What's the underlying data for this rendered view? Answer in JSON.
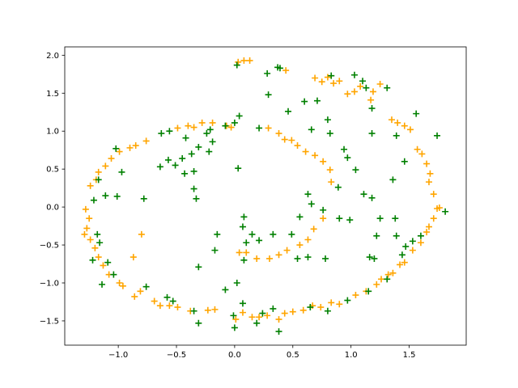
{
  "chart_data": {
    "type": "scatter",
    "xlim": [
      -1.46,
      1.99
    ],
    "ylim": [
      -1.82,
      2.11
    ],
    "xticks": [
      {
        "value": -1.0,
        "label": "−1.0"
      },
      {
        "value": -0.5,
        "label": "−0.5"
      },
      {
        "value": 0.0,
        "label": "0.0"
      },
      {
        "value": 0.5,
        "label": "0.5"
      },
      {
        "value": 1.0,
        "label": "1.0"
      },
      {
        "value": 1.5,
        "label": "1.5"
      }
    ],
    "yticks": [
      {
        "value": -1.5,
        "label": "−1.5"
      },
      {
        "value": -1.0,
        "label": "−1.0"
      },
      {
        "value": -0.5,
        "label": "−0.5"
      },
      {
        "value": 0.0,
        "label": "0.0"
      },
      {
        "value": 0.5,
        "label": "0.5"
      },
      {
        "value": 1.0,
        "label": "1.0"
      },
      {
        "value": 1.5,
        "label": "1.5"
      },
      {
        "value": 2.0,
        "label": "2.0"
      }
    ],
    "marker": "+",
    "series": [
      {
        "color": "#ffa500",
        "x": [
          0.03,
          0.08,
          0.13,
          0.44,
          0.69,
          0.75,
          0.8,
          0.85,
          0.9,
          0.97,
          1.03,
          1.08,
          1.17,
          1.19,
          1.25,
          -1.28,
          -1.25,
          -1.27,
          -1.29,
          -1.24,
          -1.2,
          -1.17,
          -1.13,
          -1.08,
          -0.99,
          -0.96,
          -0.86,
          -0.81,
          -0.69,
          -0.64,
          -0.56,
          -0.49,
          -0.38,
          -0.23,
          -0.17,
          0.01,
          0.07,
          0.15,
          0.21,
          0.28,
          0.38,
          0.43,
          0.5,
          0.59,
          0.67,
          0.74,
          0.83,
          0.9,
          1.04,
          1.13,
          1.22,
          1.26,
          1.32,
          1.36,
          1.42,
          1.46,
          1.53,
          1.6,
          1.65,
          1.67,
          1.71,
          1.74,
          1.76,
          1.71,
          1.67,
          1.68,
          1.65,
          1.61,
          1.57,
          1.51,
          1.46,
          1.4,
          1.35,
          -1.24,
          -1.19,
          -1.17,
          -1.11,
          -1.06,
          -0.99,
          -0.9,
          -0.85,
          -0.76,
          -0.49,
          -0.4,
          -0.35,
          -0.28,
          -0.19,
          -0.07,
          -0.03,
          0.29,
          0.38,
          0.43,
          0.49,
          0.54,
          0.61,
          0.69,
          0.76,
          0.82,
          0.83,
          0.76,
          0.68,
          0.63,
          0.56,
          0.45,
          0.38,
          0.3,
          0.19,
          0.1,
          0.04,
          -0.8,
          -0.87
        ],
        "y": [
          1.91,
          1.93,
          1.93,
          1.8,
          1.7,
          1.65,
          1.71,
          1.63,
          1.66,
          1.49,
          1.52,
          1.59,
          1.41,
          1.52,
          1.62,
          -0.03,
          -0.15,
          -0.28,
          -0.36,
          -0.43,
          -0.54,
          -0.66,
          -0.77,
          -0.89,
          -1.0,
          -1.04,
          -1.18,
          -1.11,
          -1.24,
          -1.3,
          -1.3,
          -1.32,
          -1.37,
          -1.36,
          -1.35,
          -1.48,
          -1.39,
          -1.45,
          -1.45,
          -1.43,
          -1.48,
          -1.4,
          -1.38,
          -1.36,
          -1.3,
          -1.32,
          -1.26,
          -1.28,
          -1.16,
          -1.11,
          -1.02,
          -0.95,
          -0.89,
          -0.87,
          -0.76,
          -0.73,
          -0.57,
          -0.47,
          -0.33,
          -0.26,
          -0.15,
          -0.02,
          -0.01,
          0.17,
          0.33,
          0.44,
          0.57,
          0.7,
          0.76,
          1.02,
          1.07,
          1.11,
          1.15,
          0.28,
          0.36,
          0.46,
          0.54,
          0.64,
          0.73,
          0.78,
          0.81,
          0.87,
          1.04,
          1.07,
          1.05,
          1.11,
          1.11,
          1.07,
          1.05,
          1.04,
          0.97,
          0.89,
          0.88,
          0.81,
          0.73,
          0.68,
          0.6,
          0.49,
          0.33,
          -0.15,
          -0.29,
          -0.43,
          -0.5,
          -0.57,
          -0.63,
          -0.68,
          -0.68,
          -0.6,
          -0.6,
          -0.36,
          -0.66
        ]
      },
      {
        "color": "#008000",
        "x": [
          0.02,
          0.37,
          0.39,
          0.28,
          0.6,
          0.71,
          0.83,
          1.03,
          1.1,
          1.13,
          1.31,
          1.18,
          0.46,
          0.8,
          0.29,
          0.04,
          0.0,
          -0.08,
          -0.21,
          -0.24,
          -0.31,
          -0.37,
          -0.45,
          -0.57,
          -0.64,
          -0.51,
          -0.43,
          -0.35,
          -0.22,
          -0.19,
          -0.42,
          -0.56,
          -0.63,
          0.03,
          -1.02,
          -0.97,
          -1.01,
          -1.11,
          -1.21,
          -1.17,
          -0.78,
          -0.35,
          -0.33,
          0.21,
          0.66,
          0.82,
          0.94,
          0.97,
          1.04,
          1.18,
          1.39,
          1.46,
          1.56,
          1.74,
          1.36,
          1.18,
          1.11,
          0.89,
          0.76,
          0.9,
          0.99,
          1.25,
          1.38,
          1.6,
          1.47,
          1.39,
          1.22,
          1.16,
          1.2,
          0.78,
          0.63,
          0.54,
          0.66,
          0.63,
          0.56,
          0.49,
          0.33,
          0.21,
          0.15,
          0.07,
          0.08,
          0.1,
          0.08,
          -0.15,
          -0.17,
          -0.31,
          -0.08,
          0.02,
          0.07,
          -0.01,
          0.0,
          0.19,
          0.24,
          0.33,
          -0.35,
          -0.31,
          -0.53,
          -0.58,
          -0.76,
          -1.04,
          -1.09,
          -1.22,
          -1.14,
          -1.16,
          -1.18,
          1.81,
          1.53,
          1.44,
          1.31,
          1.15,
          0.97,
          0.8,
          0.65,
          0.38
        ],
        "y": [
          1.87,
          1.84,
          1.83,
          1.76,
          1.39,
          1.4,
          1.73,
          1.74,
          1.66,
          1.57,
          1.57,
          1.3,
          1.26,
          1.15,
          1.48,
          1.2,
          1.11,
          1.07,
          1.02,
          0.97,
          0.79,
          0.7,
          0.64,
          0.62,
          0.53,
          0.55,
          0.44,
          0.47,
          0.73,
          0.86,
          0.91,
          1.0,
          0.97,
          0.51,
          0.77,
          0.46,
          0.14,
          0.15,
          0.09,
          0.36,
          0.11,
          0.24,
          0.11,
          1.04,
          1.02,
          0.97,
          0.76,
          0.65,
          0.49,
          0.97,
          0.94,
          0.6,
          1.23,
          0.94,
          0.36,
          0.12,
          0.17,
          0.26,
          -0.04,
          -0.15,
          -0.17,
          -0.15,
          -0.15,
          -0.38,
          -0.52,
          -0.38,
          -0.38,
          -0.66,
          -0.68,
          -0.68,
          -0.66,
          -0.68,
          0.04,
          0.17,
          -0.13,
          -0.36,
          -0.36,
          -0.44,
          -0.36,
          -0.26,
          -0.13,
          -0.47,
          -0.7,
          -0.36,
          -0.57,
          -0.79,
          -1.09,
          -1.0,
          -1.27,
          -1.43,
          -1.59,
          -1.53,
          -1.4,
          -1.34,
          -1.37,
          -1.53,
          -1.24,
          -1.19,
          -1.05,
          -0.89,
          -0.73,
          -0.7,
          -1.02,
          -0.47,
          -0.36,
          -0.06,
          -0.45,
          -0.63,
          -0.95,
          -1.11,
          -1.23,
          -1.37,
          -1.32,
          -1.64
        ]
      }
    ]
  }
}
